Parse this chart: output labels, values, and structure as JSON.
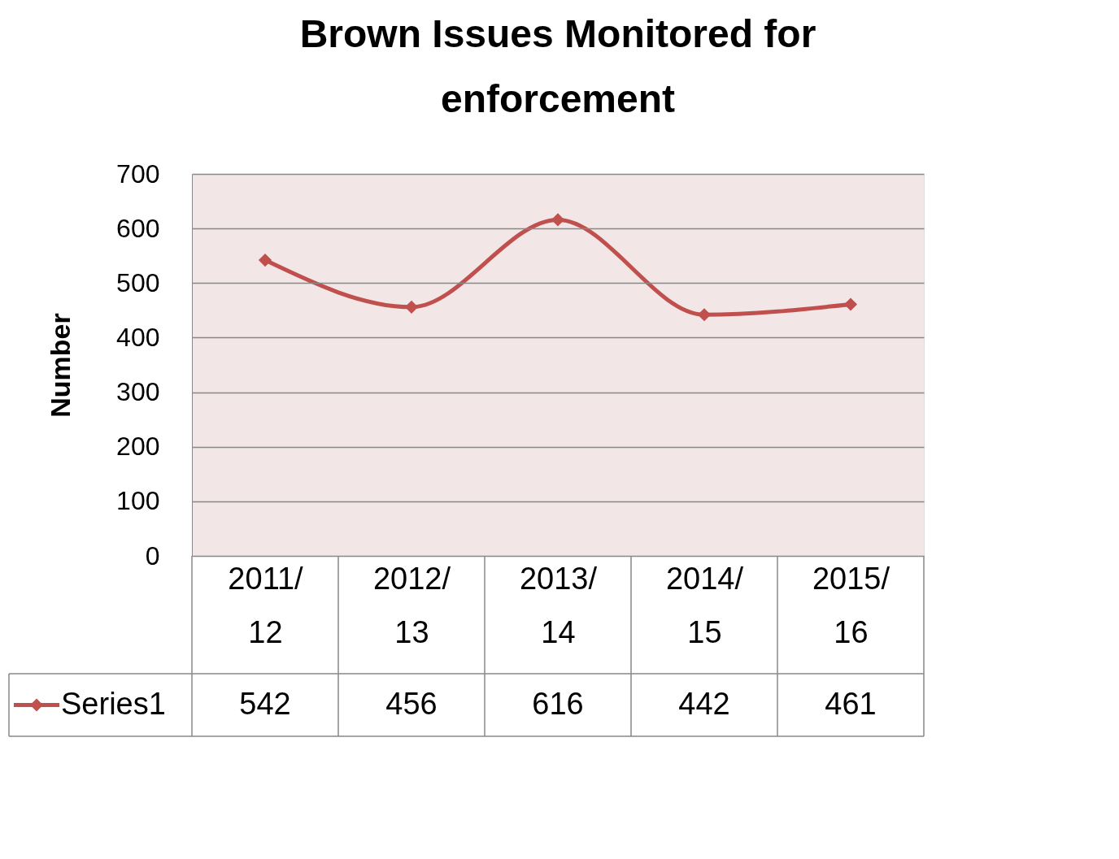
{
  "chart_data": {
    "type": "line",
    "title": "Brown Issues Monitored for enforcement",
    "ylabel": "Number",
    "categories": [
      "2011/12",
      "2012/13",
      "2013/14",
      "2014/15",
      "2015/16"
    ],
    "series": [
      {
        "name": "Series1",
        "color": "#c0504d",
        "values": [
          542,
          456,
          616,
          442,
          461
        ]
      }
    ],
    "ylim": [
      0,
      700
    ],
    "yticks": [
      0,
      100,
      200,
      300,
      400,
      500,
      600,
      700
    ],
    "grid": "y",
    "legend": "bottom",
    "data_labels": true,
    "marker": "diamond",
    "line_style": "solid"
  }
}
